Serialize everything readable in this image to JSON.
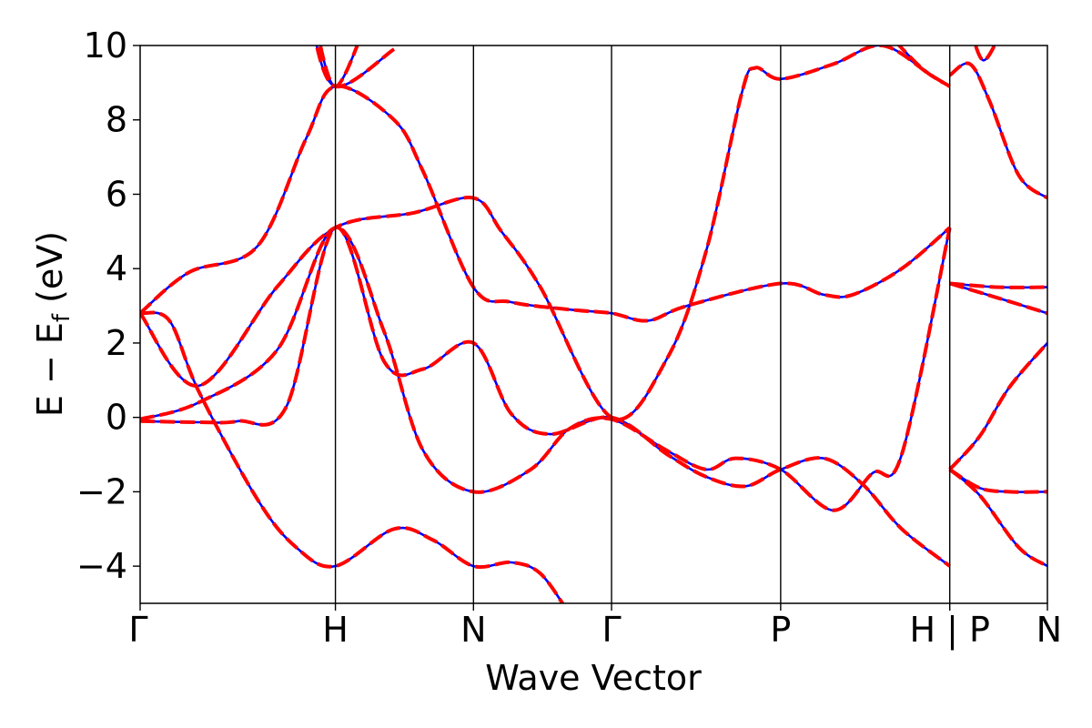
{
  "chart_data": {
    "type": "line",
    "title": "",
    "xlabel": "Wave Vector",
    "ylabel_parts": {
      "main": "E − E",
      "sub": "f",
      "unit": " (eV)"
    },
    "ylim": [
      -5,
      10
    ],
    "yticks": [
      -4,
      -2,
      0,
      2,
      4,
      6,
      8,
      10
    ],
    "ytick_labels": [
      "−4",
      "−2",
      "0",
      "2",
      "4",
      "6",
      "8",
      "10"
    ],
    "grid": false,
    "legend": "none",
    "kpath": [
      {
        "label": "Γ",
        "k": 0.0
      },
      {
        "label": "H",
        "k": 1.0
      },
      {
        "label": "N",
        "k": 1.707
      },
      {
        "label": "Γ",
        "k": 2.414
      },
      {
        "label": "P",
        "k": 3.28
      },
      {
        "label": "H | P",
        "k": 4.146
      },
      {
        "label": "N",
        "k": 4.646
      }
    ],
    "series": [
      {
        "color": "#0000ff",
        "dash": "solid",
        "bands": [
          [
            [
              0,
              -0.1
            ],
            [
              0.3,
              -0.13
            ],
            [
              0.5,
              -0.1
            ],
            [
              0.75,
              0.3
            ],
            [
              1.0,
              5.1
            ],
            [
              1.25,
              1.5
            ],
            [
              1.45,
              1.3
            ],
            [
              1.707,
              2.0
            ],
            [
              1.9,
              0.1
            ],
            [
              2.1,
              -0.45
            ],
            [
              2.414,
              0.0
            ],
            [
              2.7,
              -1.0
            ],
            [
              2.9,
              -1.6
            ],
            [
              3.1,
              -1.85
            ],
            [
              3.28,
              -1.4
            ],
            [
              3.5,
              -1.1
            ],
            [
              3.7,
              -1.8
            ],
            [
              3.9,
              -3.0
            ],
            [
              4.146,
              -4.0
            ]
          ],
          [
            [
              0,
              -0.05
            ],
            [
              0.3,
              0.4
            ],
            [
              0.7,
              1.8
            ],
            [
              1.0,
              5.1
            ],
            [
              1.25,
              2.3
            ],
            [
              1.45,
              -0.9
            ],
            [
              1.707,
              -2.0
            ],
            [
              2.0,
              -1.4
            ],
            [
              2.2,
              -0.3
            ],
            [
              2.414,
              -0.05
            ],
            [
              2.7,
              -0.9
            ],
            [
              2.9,
              -1.4
            ],
            [
              3.05,
              -1.1
            ],
            [
              3.28,
              -1.4
            ],
            [
              3.55,
              -2.5
            ],
            [
              3.75,
              -1.5
            ],
            [
              3.9,
              -1.0
            ],
            [
              4.146,
              5.1
            ]
          ],
          [
            [
              0,
              2.8
            ],
            [
              0.15,
              2.6
            ],
            [
              0.3,
              0.7
            ],
            [
              0.6,
              -2.2
            ],
            [
              0.8,
              -3.5
            ],
            [
              1.0,
              -4.0
            ],
            [
              1.3,
              -3.0
            ],
            [
              1.5,
              -3.3
            ],
            [
              1.707,
              -4.0
            ],
            [
              1.9,
              -3.9
            ],
            [
              2.05,
              -4.2
            ],
            [
              2.2,
              -5.3
            ]
          ],
          [
            [
              0,
              2.8
            ],
            [
              0.3,
              0.85
            ],
            [
              0.7,
              3.5
            ],
            [
              1.0,
              5.1
            ],
            [
              1.4,
              5.5
            ],
            [
              1.707,
              5.9
            ],
            [
              1.85,
              5.0
            ],
            [
              2.05,
              3.5
            ],
            [
              2.414,
              0.0
            ],
            [
              2.7,
              1.6
            ],
            [
              2.9,
              4.5
            ],
            [
              3.08,
              8.7
            ],
            [
              3.15,
              9.4
            ],
            [
              3.28,
              9.1
            ],
            [
              3.55,
              9.5
            ],
            [
              3.8,
              10.0
            ],
            [
              4.05,
              9.2
            ],
            [
              4.146,
              8.9
            ]
          ],
          [
            [
              0,
              2.8
            ],
            [
              0.25,
              3.9
            ],
            [
              0.6,
              4.6
            ],
            [
              0.85,
              7.5
            ],
            [
              1.0,
              8.9
            ],
            [
              1.3,
              8.0
            ],
            [
              1.45,
              6.6
            ],
            [
              1.707,
              3.5
            ],
            [
              1.9,
              3.1
            ],
            [
              2.2,
              2.9
            ],
            [
              2.414,
              2.8
            ],
            [
              2.6,
              2.6
            ],
            [
              2.8,
              3.0
            ],
            [
              3.28,
              3.6
            ],
            [
              3.5,
              3.3
            ],
            [
              3.65,
              3.3
            ],
            [
              3.9,
              4.0
            ],
            [
              4.146,
              5.1
            ]
          ],
          [
            [
              0.9,
              10.5
            ],
            [
              1.0,
              8.9
            ],
            [
              1.15,
              10.5
            ]
          ],
          [
            [
              1.3,
              9.9
            ],
            [
              1.0,
              8.9
            ],
            [
              0.88,
              10.5
            ]
          ],
          [
            [
              3.8,
              10.5
            ],
            [
              4.0,
              9.4
            ],
            [
              4.146,
              8.9
            ]
          ],
          [
            [
              4.146,
              -1.4
            ],
            [
              4.3,
              -1.9
            ],
            [
              4.45,
              -2.0
            ],
            [
              4.646,
              -2.0
            ]
          ],
          [
            [
              4.146,
              -1.4
            ],
            [
              4.3,
              -0.5
            ],
            [
              4.45,
              0.8
            ],
            [
              4.646,
              2.0
            ]
          ],
          [
            [
              4.146,
              -1.4
            ],
            [
              4.3,
              -2.1
            ],
            [
              4.5,
              -3.5
            ],
            [
              4.646,
              -4.0
            ]
          ],
          [
            [
              4.146,
              3.6
            ],
            [
              4.4,
              3.5
            ],
            [
              4.646,
              3.5
            ]
          ],
          [
            [
              4.146,
              3.6
            ],
            [
              4.4,
              3.2
            ],
            [
              4.646,
              2.8
            ]
          ],
          [
            [
              4.146,
              9.2
            ],
            [
              4.25,
              9.5
            ],
            [
              4.35,
              8.5
            ],
            [
              4.5,
              6.5
            ],
            [
              4.646,
              5.9
            ]
          ],
          [
            [
              4.25,
              10.5
            ],
            [
              4.32,
              9.6
            ],
            [
              4.42,
              10.5
            ]
          ]
        ]
      },
      {
        "color": "#ff0000",
        "dash": "dashed",
        "bands": [
          [
            [
              0,
              -0.1
            ],
            [
              0.3,
              -0.13
            ],
            [
              0.5,
              -0.1
            ],
            [
              0.75,
              0.3
            ],
            [
              1.0,
              5.1
            ],
            [
              1.25,
              1.5
            ],
            [
              1.45,
              1.3
            ],
            [
              1.707,
              2.0
            ],
            [
              1.9,
              0.1
            ],
            [
              2.1,
              -0.45
            ],
            [
              2.414,
              0.0
            ],
            [
              2.7,
              -1.0
            ],
            [
              2.9,
              -1.6
            ],
            [
              3.1,
              -1.85
            ],
            [
              3.28,
              -1.4
            ],
            [
              3.5,
              -1.1
            ],
            [
              3.7,
              -1.8
            ],
            [
              3.9,
              -3.0
            ],
            [
              4.146,
              -4.0
            ]
          ],
          [
            [
              0,
              -0.05
            ],
            [
              0.3,
              0.4
            ],
            [
              0.7,
              1.8
            ],
            [
              1.0,
              5.1
            ],
            [
              1.25,
              2.3
            ],
            [
              1.45,
              -0.9
            ],
            [
              1.707,
              -2.0
            ],
            [
              2.0,
              -1.4
            ],
            [
              2.2,
              -0.3
            ],
            [
              2.414,
              -0.05
            ],
            [
              2.7,
              -0.9
            ],
            [
              2.9,
              -1.4
            ],
            [
              3.05,
              -1.1
            ],
            [
              3.28,
              -1.4
            ],
            [
              3.55,
              -2.5
            ],
            [
              3.75,
              -1.5
            ],
            [
              3.9,
              -1.0
            ],
            [
              4.146,
              5.1
            ]
          ],
          [
            [
              0,
              2.8
            ],
            [
              0.15,
              2.6
            ],
            [
              0.3,
              0.7
            ],
            [
              0.6,
              -2.2
            ],
            [
              0.8,
              -3.5
            ],
            [
              1.0,
              -4.0
            ],
            [
              1.3,
              -3.0
            ],
            [
              1.5,
              -3.3
            ],
            [
              1.707,
              -4.0
            ],
            [
              1.9,
              -3.9
            ],
            [
              2.05,
              -4.2
            ],
            [
              2.2,
              -5.3
            ]
          ],
          [
            [
              0,
              2.8
            ],
            [
              0.3,
              0.85
            ],
            [
              0.7,
              3.5
            ],
            [
              1.0,
              5.1
            ],
            [
              1.4,
              5.5
            ],
            [
              1.707,
              5.9
            ],
            [
              1.85,
              5.0
            ],
            [
              2.05,
              3.5
            ],
            [
              2.414,
              0.0
            ],
            [
              2.7,
              1.6
            ],
            [
              2.9,
              4.5
            ],
            [
              3.08,
              8.7
            ],
            [
              3.15,
              9.4
            ],
            [
              3.28,
              9.1
            ],
            [
              3.55,
              9.5
            ],
            [
              3.8,
              10.0
            ],
            [
              4.05,
              9.2
            ],
            [
              4.146,
              8.9
            ]
          ],
          [
            [
              0,
              2.8
            ],
            [
              0.25,
              3.9
            ],
            [
              0.6,
              4.6
            ],
            [
              0.85,
              7.5
            ],
            [
              1.0,
              8.9
            ],
            [
              1.3,
              8.0
            ],
            [
              1.45,
              6.6
            ],
            [
              1.707,
              3.5
            ],
            [
              1.9,
              3.1
            ],
            [
              2.2,
              2.9
            ],
            [
              2.414,
              2.8
            ],
            [
              2.6,
              2.6
            ],
            [
              2.8,
              3.0
            ],
            [
              3.28,
              3.6
            ],
            [
              3.5,
              3.3
            ],
            [
              3.65,
              3.3
            ],
            [
              3.9,
              4.0
            ],
            [
              4.146,
              5.1
            ]
          ],
          [
            [
              0.9,
              10.5
            ],
            [
              1.0,
              8.9
            ],
            [
              1.15,
              10.5
            ]
          ],
          [
            [
              1.3,
              9.9
            ],
            [
              1.0,
              8.9
            ],
            [
              0.88,
              10.5
            ]
          ],
          [
            [
              3.8,
              10.5
            ],
            [
              4.0,
              9.4
            ],
            [
              4.146,
              8.9
            ]
          ],
          [
            [
              4.146,
              -1.4
            ],
            [
              4.3,
              -1.9
            ],
            [
              4.45,
              -2.0
            ],
            [
              4.646,
              -2.0
            ]
          ],
          [
            [
              4.146,
              -1.4
            ],
            [
              4.3,
              -0.5
            ],
            [
              4.45,
              0.8
            ],
            [
              4.646,
              2.0
            ]
          ],
          [
            [
              4.146,
              -1.4
            ],
            [
              4.3,
              -2.1
            ],
            [
              4.5,
              -3.5
            ],
            [
              4.646,
              -4.0
            ]
          ],
          [
            [
              4.146,
              3.6
            ],
            [
              4.4,
              3.5
            ],
            [
              4.646,
              3.5
            ]
          ],
          [
            [
              4.146,
              3.6
            ],
            [
              4.4,
              3.2
            ],
            [
              4.646,
              2.8
            ]
          ],
          [
            [
              4.146,
              9.2
            ],
            [
              4.25,
              9.5
            ],
            [
              4.35,
              8.5
            ],
            [
              4.5,
              6.5
            ],
            [
              4.646,
              5.9
            ]
          ],
          [
            [
              4.25,
              10.5
            ],
            [
              4.32,
              9.6
            ],
            [
              4.42,
              10.5
            ]
          ]
        ]
      }
    ]
  }
}
